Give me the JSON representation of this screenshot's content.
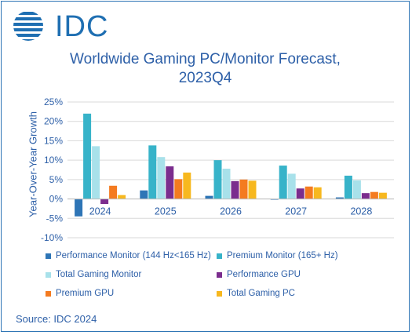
{
  "logo": {
    "text": "IDC",
    "color": "#1f6fb2"
  },
  "source": "Source: IDC 2024",
  "chart_data": {
    "type": "bar",
    "title_lines": [
      "Worldwide Gaming PC/Monitor Forecast,",
      "2023Q4"
    ],
    "ylabel": "Year-Over-Year Growth",
    "xlabel": "",
    "ylim": [
      -10,
      25
    ],
    "yticks": [
      "-10%",
      "-5%",
      "0%",
      "5%",
      "10%",
      "15%",
      "20%",
      "25%"
    ],
    "ytick_values": [
      -10,
      -5,
      0,
      5,
      10,
      15,
      20,
      25
    ],
    "grid": true,
    "legend_position": "bottom",
    "categories": [
      "2024",
      "2025",
      "2026",
      "2027",
      "2028"
    ],
    "series": [
      {
        "name": "Performance Monitor (144 Hz<165 Hz)",
        "color": "#2e75b6",
        "values": [
          -4.5,
          2.2,
          0.8,
          -0.2,
          0.4
        ]
      },
      {
        "name": "Premium Monitor (165+ Hz)",
        "color": "#37b3c9",
        "values": [
          22,
          13.8,
          10,
          8.6,
          6
        ]
      },
      {
        "name": "Total Gaming Monitor",
        "color": "#a8e1ea",
        "values": [
          13.6,
          10.8,
          7.8,
          6.5,
          4.8
        ]
      },
      {
        "name": "Performance GPU",
        "color": "#7b2d8e",
        "values": [
          -1.3,
          8.4,
          4.6,
          2.7,
          1.5
        ]
      },
      {
        "name": "Premium GPU",
        "color": "#f47b20",
        "values": [
          3.4,
          5.1,
          5,
          3.2,
          1.8
        ]
      },
      {
        "name": "Total Gaming PC",
        "color": "#f7b81f",
        "values": [
          1,
          6.8,
          4.7,
          3,
          1.6
        ]
      }
    ]
  }
}
